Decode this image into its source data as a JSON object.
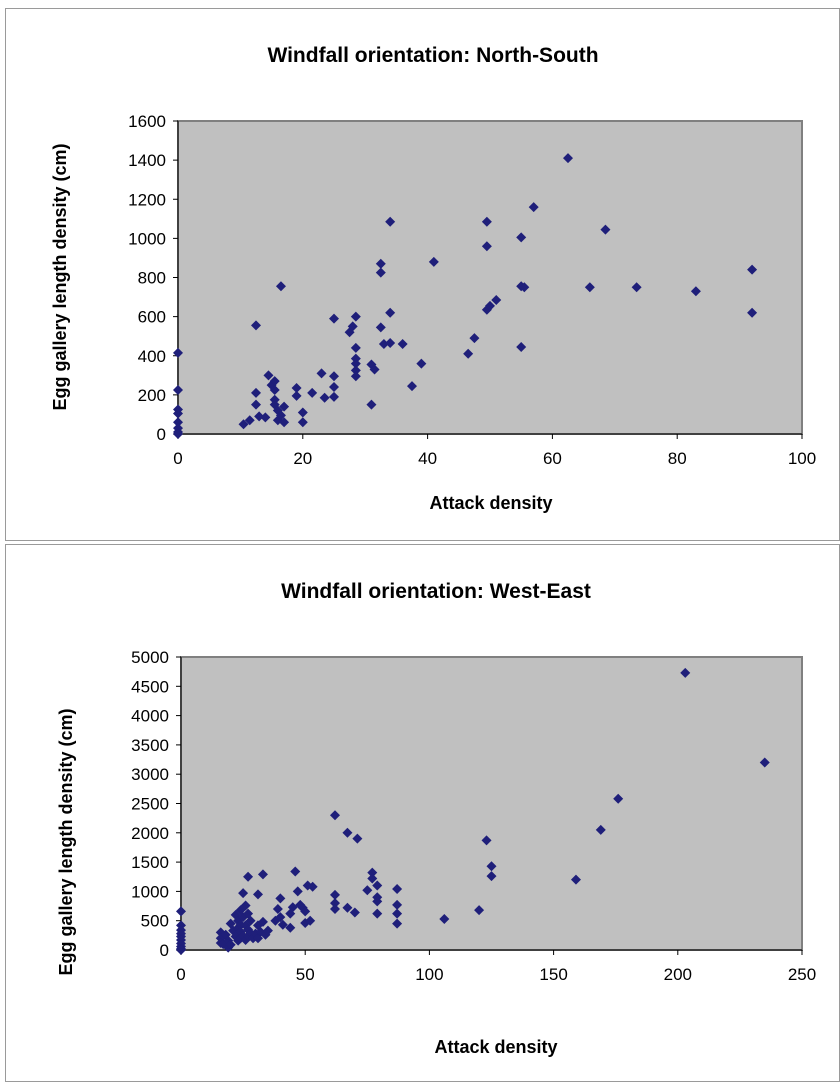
{
  "colors": {
    "plot_background": "#c0c0c0",
    "marker": "#1f1f7a",
    "axis": "#808080",
    "panel_border": "#9a9a9a"
  },
  "chart_data": [
    {
      "type": "scatter",
      "title": "Windfall orientation: North-South",
      "xlabel": "Attack density",
      "ylabel": "Egg gallery length density (cm)",
      "xlim": [
        0,
        100
      ],
      "ylim": [
        0,
        1600
      ],
      "xticks": [
        "0",
        "20",
        "40",
        "60",
        "80",
        "100"
      ],
      "yticks": [
        "0",
        "200",
        "400",
        "600",
        "800",
        "1000",
        "1200",
        "1400",
        "1600"
      ],
      "grid": false,
      "legend": "none",
      "marker": "diamond",
      "series": [
        {
          "points": [
            [
              0,
              415
            ],
            [
              0,
              225
            ],
            [
              0,
              125
            ],
            [
              0,
              105
            ],
            [
              0,
              60
            ],
            [
              0,
              30
            ],
            [
              0,
              10
            ],
            [
              0,
              0
            ],
            [
              10.5,
              50
            ],
            [
              11.5,
              70
            ],
            [
              12.5,
              555
            ],
            [
              12.5,
              210
            ],
            [
              12.5,
              150
            ],
            [
              13,
              90
            ],
            [
              14,
              85
            ],
            [
              14.5,
              300
            ],
            [
              15,
              250
            ],
            [
              15.5,
              270
            ],
            [
              15.5,
              225
            ],
            [
              15.5,
              175
            ],
            [
              15.5,
              150
            ],
            [
              16,
              120
            ],
            [
              16,
              70
            ],
            [
              16.5,
              755
            ],
            [
              16.5,
              95
            ],
            [
              17,
              140
            ],
            [
              17,
              60
            ],
            [
              19,
              235
            ],
            [
              19,
              195
            ],
            [
              20,
              110
            ],
            [
              20,
              60
            ],
            [
              21.5,
              210
            ],
            [
              23,
              310
            ],
            [
              23.5,
              185
            ],
            [
              25,
              590
            ],
            [
              25,
              295
            ],
            [
              25,
              240
            ],
            [
              25,
              190
            ],
            [
              27.5,
              520
            ],
            [
              28,
              550
            ],
            [
              28.5,
              600
            ],
            [
              28.5,
              440
            ],
            [
              28.5,
              385
            ],
            [
              28.5,
              360
            ],
            [
              28.5,
              325
            ],
            [
              28.5,
              295
            ],
            [
              31,
              355
            ],
            [
              31,
              150
            ],
            [
              31.5,
              330
            ],
            [
              32.5,
              870
            ],
            [
              32.5,
              825
            ],
            [
              32.5,
              545
            ],
            [
              33,
              460
            ],
            [
              34,
              1085
            ],
            [
              34,
              620
            ],
            [
              34,
              465
            ],
            [
              36,
              460
            ],
            [
              37.5,
              245
            ],
            [
              39,
              360
            ],
            [
              41,
              880
            ],
            [
              46.5,
              410
            ],
            [
              47.5,
              490
            ],
            [
              49.5,
              1085
            ],
            [
              49.5,
              960
            ],
            [
              49.5,
              635
            ],
            [
              50,
              655
            ],
            [
              51,
              685
            ],
            [
              55,
              755
            ],
            [
              55,
              1005
            ],
            [
              55.5,
              750
            ],
            [
              55,
              445
            ],
            [
              57,
              1160
            ],
            [
              62.5,
              1410
            ],
            [
              66,
              750
            ],
            [
              68.5,
              1045
            ],
            [
              73.5,
              750
            ],
            [
              83,
              730
            ],
            [
              92,
              840
            ],
            [
              92,
              620
            ]
          ]
        }
      ]
    },
    {
      "type": "scatter",
      "title": "Windfall orientation: West-East",
      "xlabel": "Attack density",
      "ylabel": "Egg gallery length density (cm)",
      "xlim": [
        0,
        250
      ],
      "ylim": [
        0,
        5000
      ],
      "xticks": [
        "0",
        "50",
        "100",
        "150",
        "200",
        "250"
      ],
      "yticks": [
        "0",
        "500",
        "1000",
        "1500",
        "2000",
        "2500",
        "3000",
        "3500",
        "4000",
        "4500",
        "5000"
      ],
      "grid": false,
      "legend": "none",
      "marker": "diamond",
      "series": [
        {
          "points": [
            [
              0,
              660
            ],
            [
              0,
              420
            ],
            [
              0,
              340
            ],
            [
              0,
              280
            ],
            [
              0,
              230
            ],
            [
              0,
              170
            ],
            [
              0,
              110
            ],
            [
              0,
              60
            ],
            [
              0,
              20
            ],
            [
              0,
              0
            ],
            [
              16,
              300
            ],
            [
              16,
              200
            ],
            [
              16,
              120
            ],
            [
              17,
              100
            ],
            [
              18,
              260
            ],
            [
              19,
              40
            ],
            [
              19,
              160
            ],
            [
              20,
              450
            ],
            [
              20,
              90
            ],
            [
              21,
              330
            ],
            [
              22,
              230
            ],
            [
              22,
              600
            ],
            [
              23,
              500
            ],
            [
              23,
              380
            ],
            [
              23,
              280
            ],
            [
              23,
              160
            ],
            [
              24,
              680
            ],
            [
              24,
              430
            ],
            [
              24,
              310
            ],
            [
              24,
              200
            ],
            [
              25,
              970
            ],
            [
              25,
              560
            ],
            [
              25,
              240
            ],
            [
              26,
              760
            ],
            [
              26,
              420
            ],
            [
              26,
              170
            ],
            [
              27,
              1250
            ],
            [
              27,
              620
            ],
            [
              27,
              350
            ],
            [
              27,
              230
            ],
            [
              28,
              500
            ],
            [
              28,
              290
            ],
            [
              29,
              200
            ],
            [
              30,
              280
            ],
            [
              31,
              950
            ],
            [
              31,
              420
            ],
            [
              31,
              200
            ],
            [
              32,
              310
            ],
            [
              33,
              1290
            ],
            [
              33,
              480
            ],
            [
              34,
              260
            ],
            [
              35,
              330
            ],
            [
              38,
              500
            ],
            [
              39,
              700
            ],
            [
              40,
              880
            ],
            [
              40,
              560
            ],
            [
              41,
              430
            ],
            [
              44,
              620
            ],
            [
              44,
              380
            ],
            [
              45,
              730
            ],
            [
              46,
              1340
            ],
            [
              47,
              1000
            ],
            [
              48,
              770
            ],
            [
              49,
              720
            ],
            [
              50,
              460
            ],
            [
              50,
              660
            ],
            [
              51,
              1100
            ],
            [
              52,
              500
            ],
            [
              53,
              1080
            ],
            [
              62,
              2300
            ],
            [
              62,
              940
            ],
            [
              62,
              800
            ],
            [
              62,
              700
            ],
            [
              67,
              2000
            ],
            [
              67,
              720
            ],
            [
              70,
              640
            ],
            [
              71,
              1900
            ],
            [
              75,
              1020
            ],
            [
              77,
              1320
            ],
            [
              77,
              1220
            ],
            [
              79,
              1100
            ],
            [
              79,
              900
            ],
            [
              79,
              830
            ],
            [
              79,
              620
            ],
            [
              87,
              1040
            ],
            [
              87,
              770
            ],
            [
              87,
              620
            ],
            [
              87,
              450
            ],
            [
              106,
              530
            ],
            [
              120,
              680
            ],
            [
              123,
              1870
            ],
            [
              125,
              1430
            ],
            [
              125,
              1260
            ],
            [
              159,
              1200
            ],
            [
              169,
              2050
            ],
            [
              176,
              2580
            ],
            [
              203,
              4730
            ],
            [
              235,
              3200
            ]
          ]
        }
      ]
    }
  ]
}
